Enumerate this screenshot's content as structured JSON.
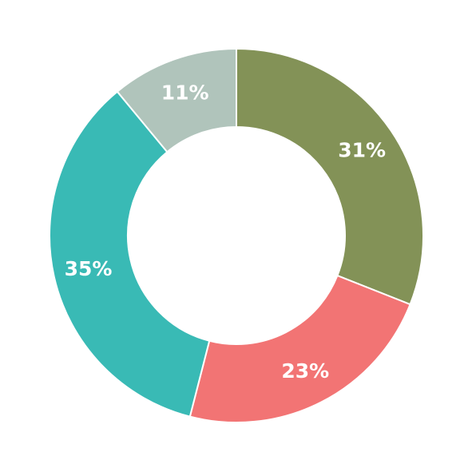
{
  "chart_data": {
    "type": "pie",
    "donut": true,
    "title": "",
    "legend": "none",
    "slices": [
      {
        "value": 31,
        "label": "31%",
        "color": "#839257"
      },
      {
        "value": 23,
        "label": "23%",
        "color": "#f27474"
      },
      {
        "value": 35,
        "label": "35%",
        "color": "#39bab5"
      },
      {
        "value": 11,
        "label": "11%",
        "color": "#b0c4bb"
      }
    ],
    "start": "top",
    "direction": "clockwise"
  }
}
